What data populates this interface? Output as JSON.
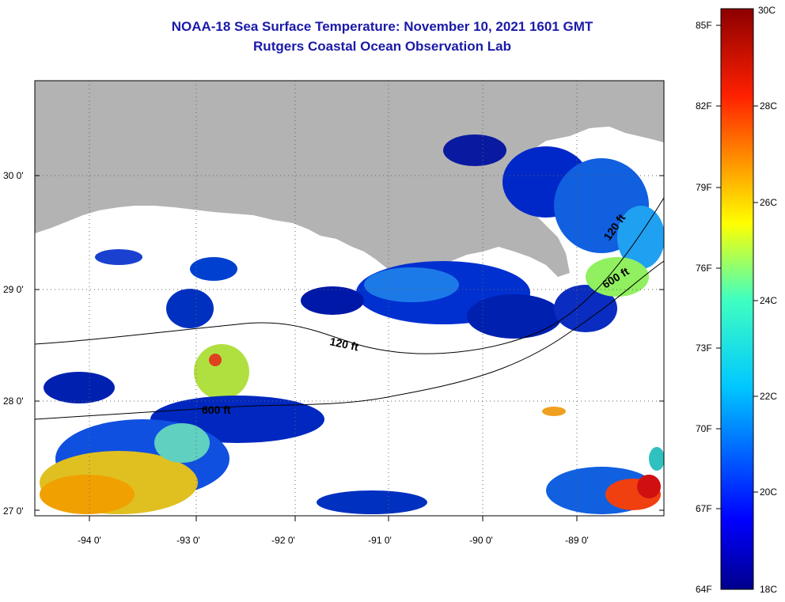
{
  "header": {
    "title": "NOAA-18 Sea Surface Temperature:  November 10, 2021 1601 GMT",
    "subtitle": "Rutgers Coastal Ocean Observation Lab"
  },
  "map": {
    "lat_labels": [
      "30 0'",
      "29 0'",
      "28 0'",
      "27 0'"
    ],
    "lon_labels": [
      "-94 0'",
      "-93 0'",
      "-92 0'",
      "-91 0'",
      "-90 0'",
      "-89 0'"
    ],
    "contour_labels": [
      "120 ft",
      "120 ft",
      "600 ft",
      "600 ft"
    ]
  },
  "colorbar": {
    "fahrenheit_labels": [
      "85F",
      "82F",
      "79F",
      "76F",
      "73F",
      "70F",
      "67F",
      "64F"
    ],
    "celsius_labels": [
      "30C",
      "28C",
      "26C",
      "24C",
      "22C",
      "20C",
      "18C"
    ]
  },
  "colors": {
    "land": "#b3b3b3",
    "title": "#1a1aa8",
    "cold": "#00008c",
    "warm": "#8c0000"
  }
}
